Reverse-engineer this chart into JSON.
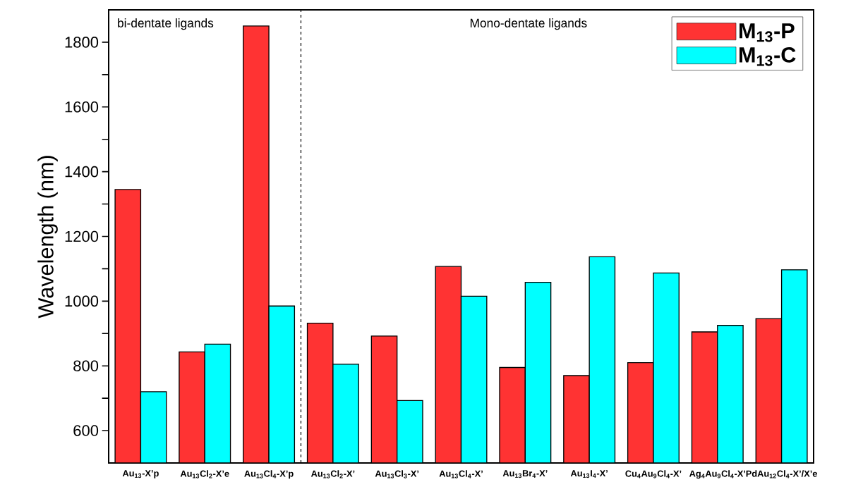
{
  "chart_data": {
    "type": "bar",
    "ylabel": "Wavelength (nm)",
    "categories": [
      "Au$_{13}$-X’p",
      "Au$_{13}$Cl$_{2}$-X’e",
      "Au$_{13}$Cl$_{4}$-X’p",
      "Au$_{13}$Cl$_{2}$-X’",
      "Au$_{13}$Cl$_{3}$-X’",
      "Au$_{13}$Cl$_{4}$-X’",
      "Au$_{13}$Br$_{4}$-X’",
      "Au$_{13}$I$_{4}$-X’",
      "Cu$_{4}$Au$_{9}$Cl$_{4}$-X’",
      "Ag$_{4}$Au$_{9}$Cl$_{4}$-X’",
      "PdAu$_{12}$Cl$_{4}$-X’/X’e"
    ],
    "series": [
      {
        "name": "M$_{13}$-P",
        "color": "#ff3333",
        "values": [
          1345,
          843,
          1850,
          932,
          892,
          1107,
          795,
          770,
          810,
          905,
          946
        ]
      },
      {
        "name": "M$_{13}$-C",
        "color": "#00ffff",
        "values": [
          720,
          867,
          985,
          805,
          693,
          1015,
          1058,
          1137,
          1087,
          925,
          1097
        ]
      }
    ],
    "ylim": [
      500,
      1900
    ],
    "yticks": [
      600,
      {
        "value": 700,
        "label": null
      },
      800,
      {
        "value": 900,
        "label": null
      },
      1000,
      {
        "value": 1100,
        "label": null
      },
      1200,
      {
        "value": 1300,
        "label": null
      },
      1400,
      {
        "value": 1500,
        "label": null
      },
      1600,
      {
        "value": 1700,
        "label": null
      },
      1800
    ],
    "annotations": [
      "bi-dentate ligands",
      "Mono-dentate ligands"
    ],
    "legend": "top right",
    "grid": false
  }
}
